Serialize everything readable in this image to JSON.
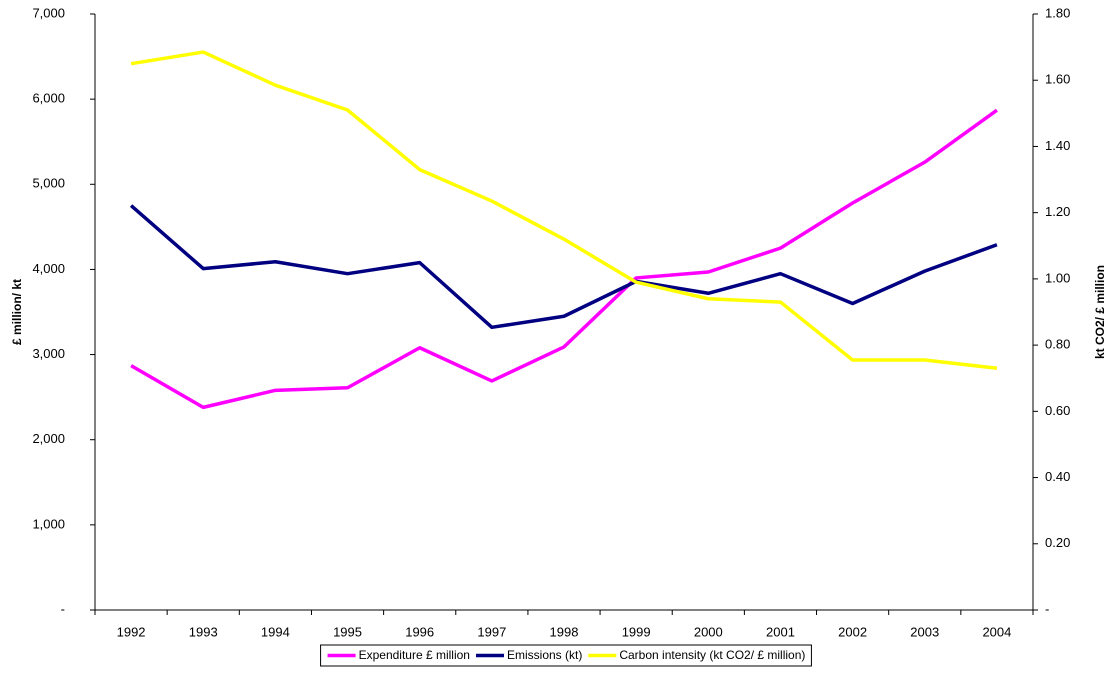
{
  "chart_data": {
    "type": "line",
    "categories": [
      "1992",
      "1993",
      "1994",
      "1995",
      "1996",
      "1997",
      "1998",
      "1999",
      "2000",
      "2001",
      "2002",
      "2003",
      "2004"
    ],
    "y_label": "£ million/ kt",
    "y2_label": "kt CO2/ £ million",
    "ylim": [
      0,
      7000
    ],
    "yticks": [
      {
        "value": 0,
        "label": "-"
      },
      {
        "value": 1000,
        "label": "1,000"
      },
      {
        "value": 2000,
        "label": "2,000"
      },
      {
        "value": 3000,
        "label": "3,000"
      },
      {
        "value": 4000,
        "label": "4,000"
      },
      {
        "value": 5000,
        "label": "5,000"
      },
      {
        "value": 6000,
        "label": "6,000"
      },
      {
        "value": 7000,
        "label": "7,000"
      }
    ],
    "y2lim": [
      0,
      1.8
    ],
    "y2ticks": [
      {
        "value": 0,
        "label": "-"
      },
      {
        "value": 0.2,
        "label": "0.20"
      },
      {
        "value": 0.4,
        "label": "0.40"
      },
      {
        "value": 0.6,
        "label": "0.60"
      },
      {
        "value": 0.8,
        "label": "0.80"
      },
      {
        "value": 1.0,
        "label": "1.00"
      },
      {
        "value": 1.2,
        "label": "1.20"
      },
      {
        "value": 1.4,
        "label": "1.40"
      },
      {
        "value": 1.6,
        "label": "1.60"
      },
      {
        "value": 1.8,
        "label": "1.80"
      }
    ],
    "legend_position": "bottom",
    "series": [
      {
        "name": "Expenditure £ million",
        "color": "#ff00ff",
        "values": [
          2870,
          2380,
          2580,
          2610,
          3080,
          2690,
          3090,
          3900,
          3970,
          4250,
          4780,
          5260,
          5870
        ]
      },
      {
        "name": "Emissions (kt)",
        "color": "#000080",
        "values": [
          4750,
          4010,
          4090,
          3950,
          4080,
          3320,
          3450,
          3860,
          3720,
          3950,
          3600,
          3980,
          4290
        ]
      },
      {
        "name": "Carbon intensity (kt CO2/ £ million)",
        "color": "#ffff00",
        "axis": "y2",
        "values": [
          1.65,
          1.685,
          1.585,
          1.51,
          1.33,
          1.235,
          1.12,
          0.99,
          0.94,
          0.93,
          0.755,
          0.755,
          0.73
        ]
      }
    ]
  }
}
